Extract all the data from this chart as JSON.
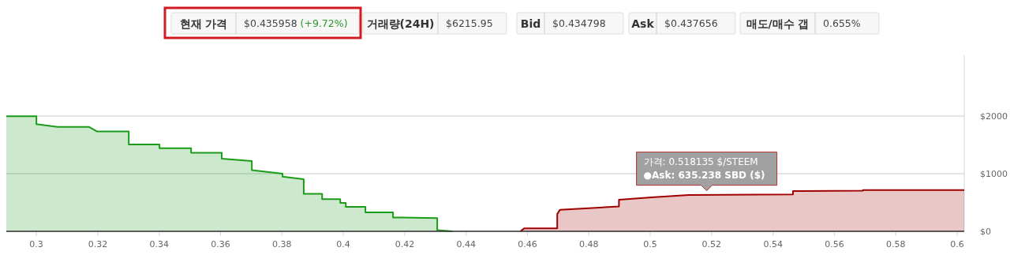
{
  "chart_data": {
    "type": "area",
    "annotations": [
      "현재 가격",
      "$0.435958",
      "(+9.72%)",
      "거래량(24H)",
      "$6215.95",
      "Bid",
      "$0.434798",
      "Ask",
      "$0.437656",
      "매도/매수 갭",
      "0.655%",
      {
        "text": "가격: 0.518135 $/STEEM\n●Ask: 635.238 SBD ($)",
        "x": 0.518135,
        "y": 635.238
      }
    ],
    "xlim": [
      0.2902,
      0.6023
    ],
    "xticks": [
      0.3,
      0.32,
      0.34,
      0.36,
      0.38,
      0.4,
      0.42,
      0.44,
      0.46,
      0.48,
      0.5,
      0.52,
      0.54,
      0.56,
      0.58,
      0.6
    ],
    "ylim": [
      0,
      3055
    ],
    "yticks": [
      {
        "value": 0,
        "label": "$0"
      },
      {
        "value": 1000,
        "label": "$1000"
      },
      {
        "value": 2000,
        "label": "$2000"
      }
    ],
    "grid": "y",
    "series": [
      {
        "color": "#1a9c1a",
        "x": [
          0.2902,
          0.3,
          0.3,
          0.3069,
          0.3172,
          0.3198,
          0.3301,
          0.3301,
          0.3401,
          0.3401,
          0.3504,
          0.3504,
          0.3604,
          0.3604,
          0.3702,
          0.3702,
          0.3802,
          0.3802,
          0.3871,
          0.3871,
          0.3931,
          0.3931,
          0.399,
          0.399,
          0.4008,
          0.4008,
          0.4072,
          0.4072,
          0.4162,
          0.4162,
          0.4306,
          0.4306,
          0.4355
        ],
        "values": [
          1996,
          1996,
          1859,
          1811,
          1811,
          1732,
          1732,
          1507,
          1507,
          1442,
          1442,
          1363,
          1363,
          1260,
          1219,
          1063,
          1000,
          950,
          904,
          652,
          652,
          558,
          558,
          493,
          493,
          425,
          425,
          329,
          329,
          241,
          230,
          21,
          0
        ]
      },
      {
        "color": "#a00000",
        "x": [
          0.4577,
          0.4589,
          0.4697,
          0.4697,
          0.4706,
          0.4898,
          0.4898,
          0.5013,
          0.5126,
          0.5465,
          0.5465,
          0.5693,
          0.5693,
          0.6023
        ],
        "values": [
          0,
          50,
          50,
          300,
          375,
          430,
          548,
          592,
          630,
          640,
          697,
          705,
          715,
          715
        ]
      }
    ]
  }
}
